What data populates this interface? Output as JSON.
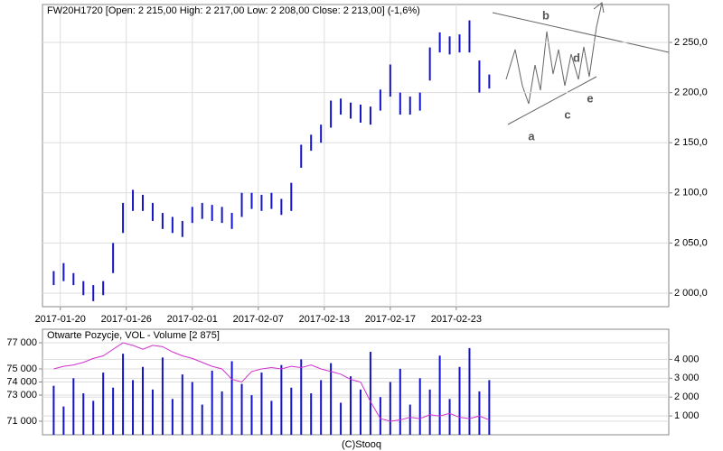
{
  "chart_data": [
    {
      "type": "ohlc",
      "title": "FW20H1720 [Open: 2 215,00  High: 2 217,00  Low: 2 208,00  Close: 2 213,00] (-1,6%)",
      "color": "#1414c8",
      "x": [
        -0.1,
        0.05,
        0.2,
        0.35,
        0.5,
        0.65,
        0.8,
        0.95,
        1.1,
        1.25,
        1.4,
        1.55,
        1.7,
        1.85,
        2.0,
        2.15,
        2.3,
        2.45,
        2.6,
        2.75,
        2.9,
        3.05,
        3.2,
        3.35,
        3.5,
        3.65,
        3.8,
        3.95,
        4.1,
        4.25,
        4.4,
        4.55,
        4.7,
        4.85,
        5.0,
        5.15,
        5.3,
        5.45,
        5.6,
        5.75,
        5.9,
        6.05,
        6.2,
        6.35,
        6.5
      ],
      "high": [
        2022,
        2030,
        2020,
        2012,
        2008,
        2012,
        2050,
        2090,
        2103,
        2098,
        2090,
        2080,
        2076,
        2072,
        2086,
        2090,
        2088,
        2086,
        2080,
        2100,
        2100,
        2098,
        2100,
        2094,
        2110,
        2148,
        2158,
        2168,
        2192,
        2194,
        2190,
        2188,
        2186,
        2203,
        2228,
        2200,
        2196,
        2200,
        2245,
        2260,
        2256,
        2258,
        2272,
        2232,
        2218
      ],
      "low": [
        2008,
        2012,
        2008,
        1998,
        1992,
        1998,
        2020,
        2060,
        2082,
        2082,
        2072,
        2064,
        2060,
        2056,
        2070,
        2074,
        2072,
        2070,
        2064,
        2076,
        2084,
        2082,
        2084,
        2078,
        2082,
        2125,
        2142,
        2150,
        2165,
        2178,
        2174,
        2170,
        2168,
        2182,
        2196,
        2178,
        2178,
        2182,
        2212,
        2240,
        2238,
        2240,
        2240,
        2200,
        2204
      ],
      "xlim": [
        -0.27,
        9.22
      ],
      "xticks": [
        {
          "value": 0,
          "label": "2017-01-20"
        },
        {
          "value": 1,
          "label": "2017-01-26"
        },
        {
          "value": 2,
          "label": "2017-02-01"
        },
        {
          "value": 3,
          "label": "2017-02-07"
        },
        {
          "value": 4,
          "label": "2017-02-13"
        },
        {
          "value": 5,
          "label": "2017-02-17"
        },
        {
          "value": 6,
          "label": "2017-02-23"
        }
      ],
      "ylim": [
        1986.5,
        2287.8
      ],
      "yticks": [
        {
          "value": 2000,
          "label": "2 000,0"
        },
        {
          "value": 2050,
          "label": "2 050,0"
        },
        {
          "value": 2100,
          "label": "2 100,0"
        },
        {
          "value": 2150,
          "label": "2 150,0"
        },
        {
          "value": 2200,
          "label": "2 200,0"
        },
        {
          "value": 2250,
          "label": "2 250,0"
        }
      ],
      "grid": true,
      "annotations": [
        "a",
        "b",
        "c",
        "d",
        "e"
      ]
    },
    {
      "type": "bar",
      "title": "Otwarte Pozycje, VOL - Volume [2 875]",
      "x": [
        -0.1,
        0.05,
        0.2,
        0.35,
        0.5,
        0.65,
        0.8,
        0.95,
        1.1,
        1.25,
        1.4,
        1.55,
        1.7,
        1.85,
        2.0,
        2.15,
        2.3,
        2.45,
        2.6,
        2.75,
        2.9,
        3.05,
        3.2,
        3.35,
        3.5,
        3.65,
        3.8,
        3.95,
        4.1,
        4.25,
        4.4,
        4.55,
        4.7,
        4.85,
        5.0,
        5.15,
        5.3,
        5.45,
        5.6,
        5.75,
        5.9,
        6.05,
        6.2,
        6.35,
        6.5
      ],
      "xlim": [
        -0.27,
        9.22
      ],
      "series": [
        {
          "name": "VOL",
          "color": "#1414c8",
          "values": [
            2600,
            1500,
            3000,
            2200,
            1800,
            3300,
            2500,
            4300,
            2900,
            3600,
            2400,
            4100,
            1900,
            3200,
            2800,
            1600,
            3400,
            2300,
            3900,
            2700,
            2100,
            3300,
            1800,
            3700,
            2500,
            4000,
            2200,
            2900,
            3800,
            1700,
            3100,
            2400,
            4400,
            2000,
            2800,
            3500,
            1600,
            3000,
            2400,
            4200,
            1900,
            3600,
            4600,
            2300,
            2900
          ]
        },
        {
          "name": "Otwarte Pozycje",
          "color": "#d030d0",
          "axis": "y2",
          "values": [
            75000,
            75200,
            75300,
            75500,
            75800,
            76000,
            76500,
            77000,
            76800,
            76500,
            76800,
            76700,
            76300,
            76000,
            75800,
            75500,
            75200,
            75000,
            74200,
            74000,
            74800,
            75000,
            75100,
            75000,
            75200,
            75100,
            75300,
            75000,
            74800,
            74600,
            74200,
            74000,
            72500,
            71200,
            71000,
            71100,
            71300,
            71200,
            71500,
            71400,
            71600,
            71300,
            71200,
            71400,
            71100
          ]
        }
      ],
      "ylim": [
        0,
        5600
      ],
      "yticks": [
        {
          "value": 1000,
          "label": "1 000"
        },
        {
          "value": 2000,
          "label": "2 000"
        },
        {
          "value": 3000,
          "label": "3 000"
        },
        {
          "value": 4000,
          "label": "4 000"
        }
      ],
      "y2lim": [
        69966,
        78034
      ],
      "y2ticks": [
        {
          "value": 71000,
          "label": "71 000"
        },
        {
          "value": 73000,
          "label": "73 000"
        },
        {
          "value": 74000,
          "label": "74 000"
        },
        {
          "value": 75000,
          "label": "75 000"
        },
        {
          "value": 77000,
          "label": "77 000"
        }
      ],
      "grid": true
    }
  ],
  "footer": "(C)Stooq"
}
